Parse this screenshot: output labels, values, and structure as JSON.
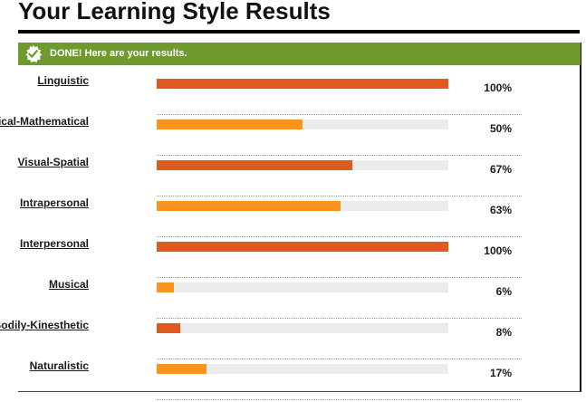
{
  "page": {
    "title": "Your Learning Style Results"
  },
  "banner": {
    "text": "DONE! Here are your results.",
    "icon": "check-badge-icon"
  },
  "colors": {
    "banner_green": "#6e9a2e",
    "bar_dark_orange": "#e05a1f",
    "bar_light_orange": "#f7931e",
    "bar_track": "#ebebeb"
  },
  "results": [
    {
      "label": "Linguistic",
      "percent_text": "100%",
      "value": 100,
      "color": "#e05a1f"
    },
    {
      "label": "Logical-Mathematical",
      "percent_text": "50%",
      "value": 50,
      "color": "#f7931e"
    },
    {
      "label": "Visual-Spatial",
      "percent_text": "67%",
      "value": 67,
      "color": "#e05a1f"
    },
    {
      "label": "Intrapersonal",
      "percent_text": "63%",
      "value": 63,
      "color": "#f7931e"
    },
    {
      "label": "Interpersonal",
      "percent_text": "100%",
      "value": 100,
      "color": "#e05a1f"
    },
    {
      "label": "Musical",
      "percent_text": "6%",
      "value": 6,
      "color": "#f7931e"
    },
    {
      "label": "Bodily-Kinesthetic",
      "percent_text": "8%",
      "value": 8,
      "color": "#e05a1f"
    },
    {
      "label": "Naturalistic",
      "percent_text": "17%",
      "value": 17,
      "color": "#f7931e"
    }
  ]
}
